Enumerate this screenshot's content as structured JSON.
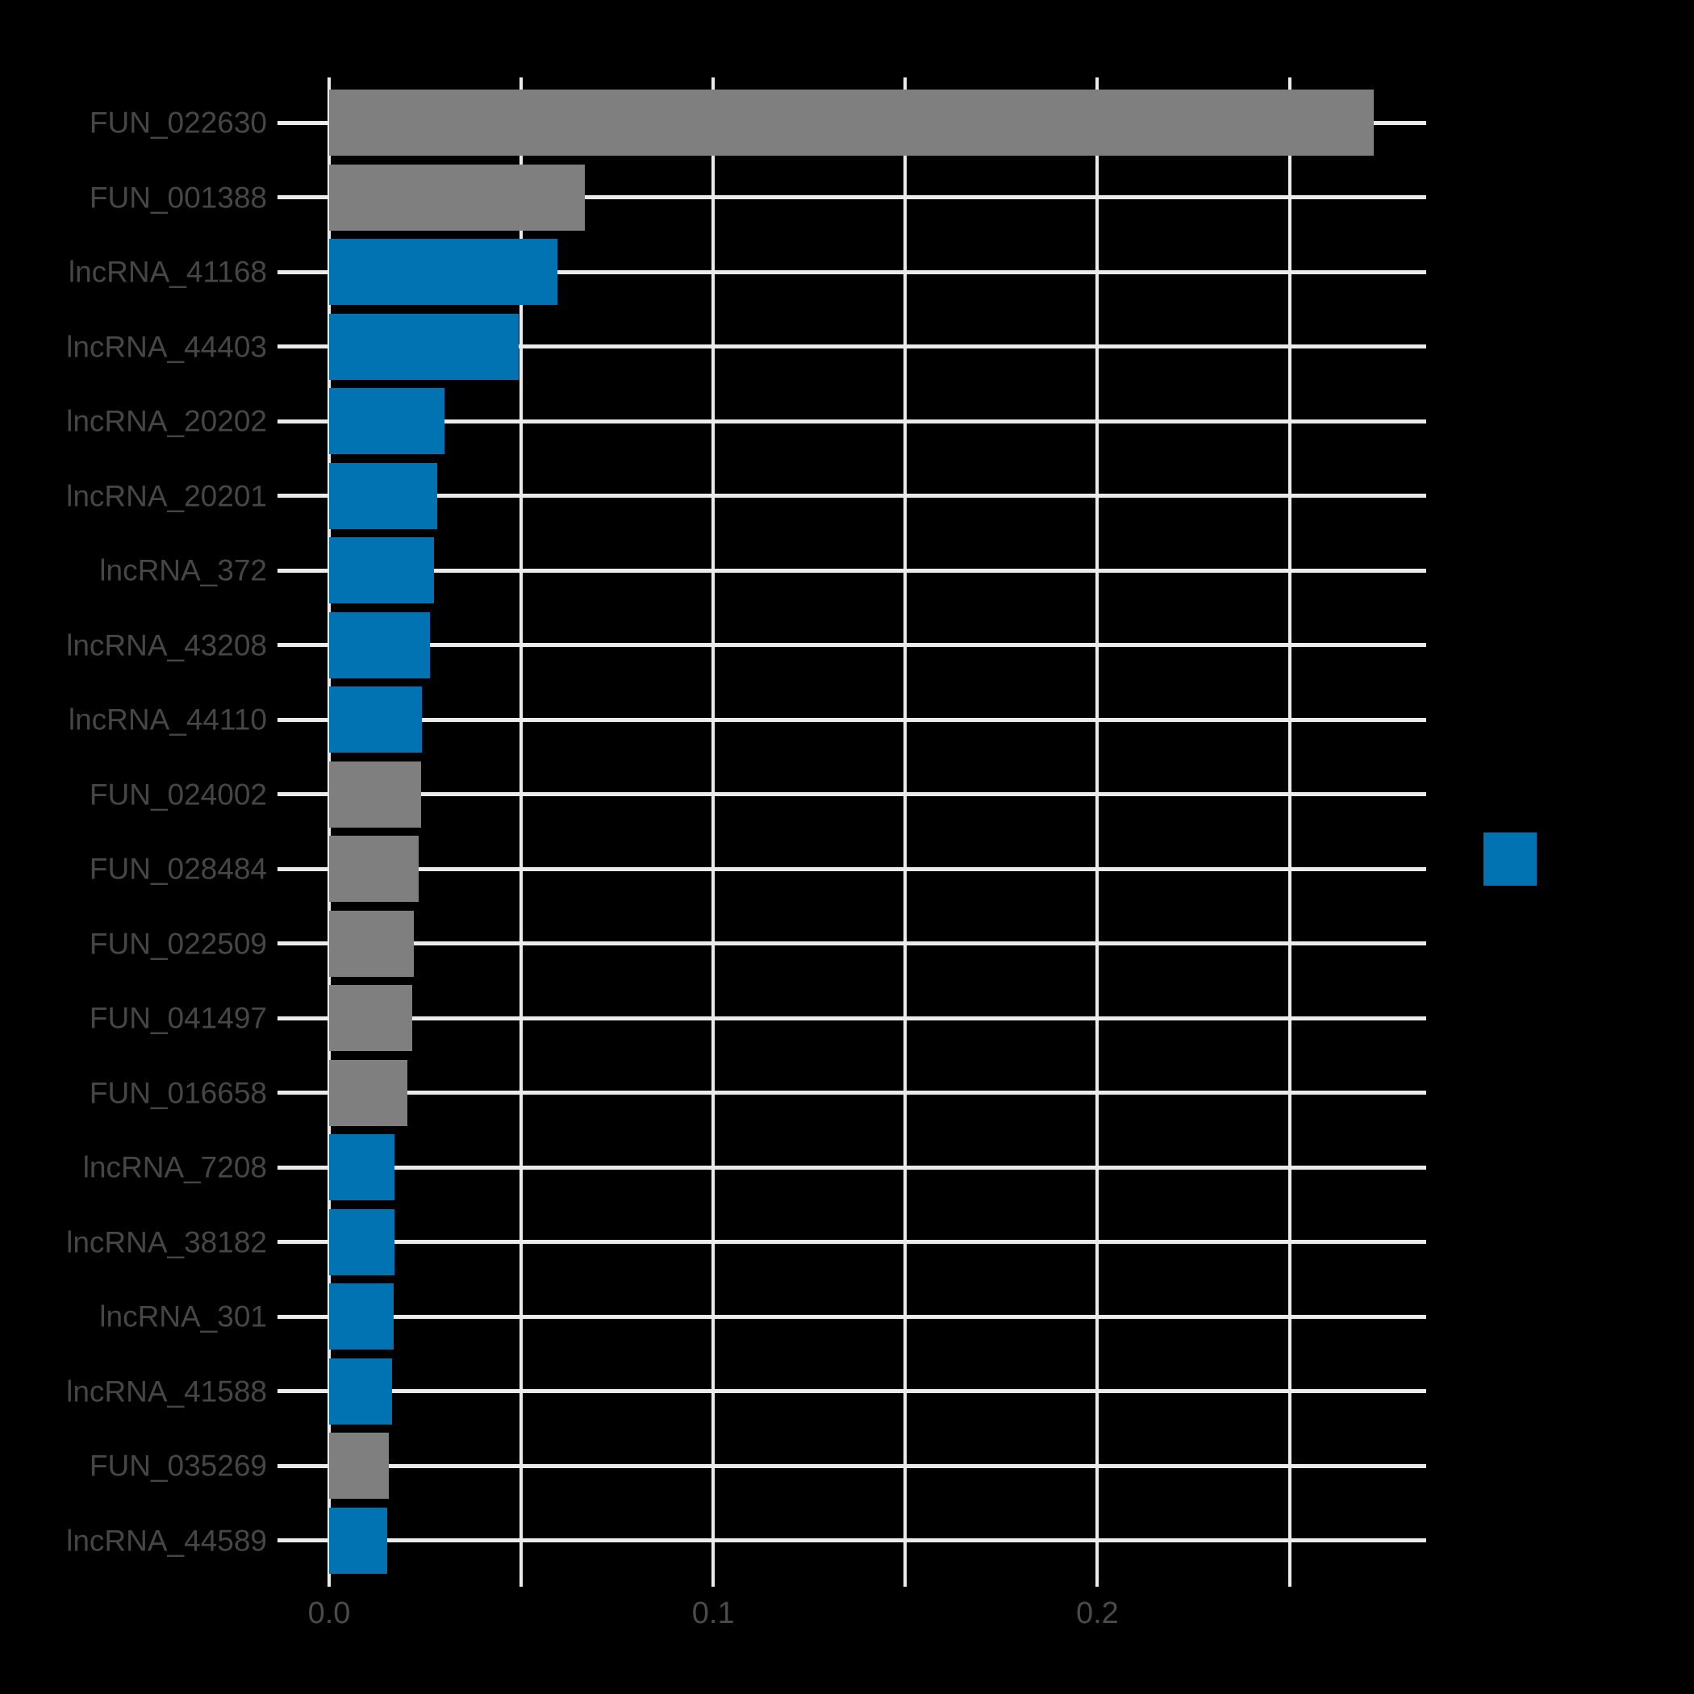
{
  "chart_data": {
    "type": "bar",
    "orientation": "horizontal",
    "title": "",
    "xlabel": "",
    "ylabel": "",
    "categories": [
      "FUN_022630",
      "FUN_001388",
      "lncRNA_41168",
      "lncRNA_44403",
      "lncRNA_20202",
      "lncRNA_20201",
      "lncRNA_372",
      "lncRNA_43208",
      "lncRNA_44110",
      "FUN_024002",
      "FUN_028484",
      "FUN_022509",
      "FUN_041497",
      "FUN_016658",
      "lncRNA_7208",
      "lncRNA_38182",
      "lncRNA_301",
      "lncRNA_41588",
      "FUN_035269",
      "lncRNA_44589"
    ],
    "values": [
      0.272,
      0.0666,
      0.0595,
      0.0494,
      0.03,
      0.0281,
      0.0274,
      0.0262,
      0.0241,
      0.0239,
      0.0233,
      0.0221,
      0.0217,
      0.0204,
      0.0171,
      0.017,
      0.0168,
      0.0164,
      0.0155,
      0.0151
    ],
    "groups": [
      "FUN",
      "FUN",
      "lncRNA",
      "lncRNA",
      "lncRNA",
      "lncRNA",
      "lncRNA",
      "lncRNA",
      "lncRNA",
      "FUN",
      "FUN",
      "FUN",
      "FUN",
      "FUN",
      "lncRNA",
      "lncRNA",
      "lncRNA",
      "lncRNA",
      "FUN",
      "lncRNA"
    ],
    "group_colors": {
      "FUN": "#7f7f7f",
      "lncRNA": "#0173b2"
    },
    "x_ticks": [
      {
        "value": 0.0,
        "label": "0.0"
      },
      {
        "value": 0.05,
        "label": ""
      },
      {
        "value": 0.1,
        "label": "0.1"
      },
      {
        "value": 0.15,
        "label": ""
      },
      {
        "value": 0.2,
        "label": "0.2"
      },
      {
        "value": 0.25,
        "label": ""
      }
    ],
    "xlim": [
      0,
      0.2857
    ],
    "grid": true,
    "legend": {
      "position": "right",
      "swatch_color": "#0173b2",
      "label": ""
    },
    "colors": {
      "background": "#000000",
      "grid": "#ebebeb",
      "tick_text": "#464646"
    }
  }
}
